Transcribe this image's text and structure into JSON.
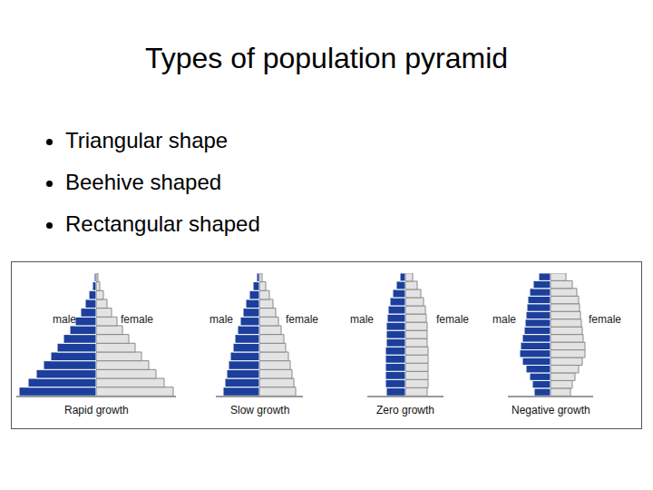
{
  "slide": {
    "title": "Types of population pyramid",
    "bullets": [
      "Triangular shape",
      "Beehive shaped",
      "Rectangular shaped"
    ]
  },
  "chart_data": [
    {
      "type": "bar",
      "orientation": "horizontal",
      "title": "Rapid growth",
      "tick_labels": false,
      "xlim": [
        0,
        88
      ],
      "series": [
        {
          "name": "male",
          "color": "#1c3f9c",
          "values": [
            85,
            75,
            66,
            58,
            50,
            43,
            36,
            29,
            23,
            17,
            12,
            8,
            4,
            2
          ]
        },
        {
          "name": "female",
          "color": "#e3e3e3",
          "values": [
            85,
            75,
            66,
            58,
            50,
            43,
            36,
            29,
            23,
            17,
            12,
            8,
            4,
            2
          ]
        }
      ]
    },
    {
      "type": "bar",
      "orientation": "horizontal",
      "title": "Slow growth",
      "tick_labels": false,
      "xlim": [
        0,
        48
      ],
      "series": [
        {
          "name": "male",
          "color": "#1c3f9c",
          "values": [
            40,
            38,
            36,
            34,
            32,
            29,
            27,
            24,
            21,
            18,
            15,
            11,
            7,
            3
          ]
        },
        {
          "name": "female",
          "color": "#e3e3e3",
          "values": [
            40,
            38,
            36,
            34,
            32,
            29,
            27,
            24,
            21,
            18,
            15,
            11,
            7,
            3
          ]
        }
      ]
    },
    {
      "type": "bar",
      "orientation": "horizontal",
      "title": "Zero growth",
      "tick_labels": false,
      "xlim": [
        0,
        42
      ],
      "series": [
        {
          "name": "male",
          "color": "#1c3f9c",
          "values": [
            21,
            22,
            22,
            22,
            22,
            22,
            21,
            21,
            21,
            20,
            19,
            17,
            14,
            10,
            6
          ]
        },
        {
          "name": "female",
          "color": "#e3e3e3",
          "values": [
            24,
            25,
            25,
            25,
            25,
            25,
            24,
            24,
            24,
            23,
            22,
            20,
            17,
            13,
            8
          ]
        }
      ]
    },
    {
      "type": "bar",
      "orientation": "horizontal",
      "title": "Negative growth",
      "tick_labels": false,
      "xlim": [
        0,
        47
      ],
      "series": [
        {
          "name": "male",
          "color": "#1c3f9c",
          "values": [
            18,
            20,
            23,
            27,
            31,
            34,
            33,
            31,
            29,
            28,
            27,
            26,
            25,
            23,
            19,
            13
          ]
        },
        {
          "name": "female",
          "color": "#e3e3e3",
          "values": [
            22,
            24,
            27,
            31,
            35,
            38,
            38,
            36,
            35,
            34,
            33,
            32,
            31,
            29,
            24,
            17
          ]
        }
      ]
    }
  ]
}
